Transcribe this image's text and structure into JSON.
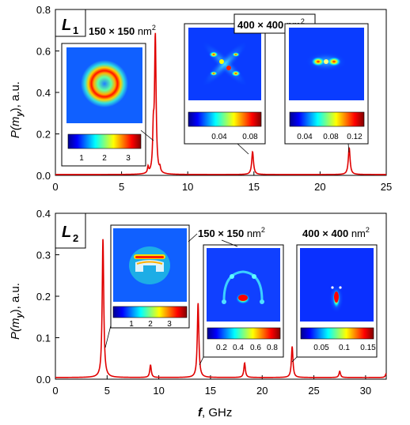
{
  "chart_data": [
    {
      "type": "line",
      "panel_label": "L",
      "panel_label_sub": "1",
      "xlabel": "",
      "ylabel_main": "P(m",
      "ylabel_sub": "y",
      "ylabel_tail": "), a.u.",
      "xlim": [
        0,
        25
      ],
      "ylim": [
        0,
        0.8
      ],
      "xticks": [
        "0",
        "5",
        "10",
        "15",
        "20",
        "25"
      ],
      "yticks": [
        "0.0",
        "0.2",
        "0.4",
        "0.6",
        "0.8"
      ],
      "series": [
        {
          "color": "#e00000",
          "peaks": [
            {
              "x": 7.0,
              "y": 0.03,
              "w": 0.05
            },
            {
              "x": 7.4,
              "y": 0.18,
              "w": 0.06
            },
            {
              "x": 7.55,
              "y": 0.66,
              "w": 0.07
            },
            {
              "x": 7.9,
              "y": 0.02,
              "w": 0.05
            },
            {
              "x": 14.9,
              "y": 0.11,
              "w": 0.08
            },
            {
              "x": 22.2,
              "y": 0.13,
              "w": 0.08
            }
          ]
        }
      ],
      "insets": [
        {
          "size_label": "150 × 150",
          "unit": "nm",
          "exp": "2",
          "ticks": [
            "1",
            "2",
            "3"
          ],
          "pattern": "ring"
        },
        {
          "size_label": "400 × 400",
          "unit": "nm",
          "exp": "2",
          "ticks": [
            "0.04",
            "0.08"
          ],
          "pattern": "quad"
        },
        {
          "ticks": [
            "0.04",
            "0.08",
            "0.12"
          ],
          "pattern": "dumbbell"
        }
      ]
    },
    {
      "type": "line",
      "panel_label": "L",
      "panel_label_sub": "2",
      "xlabel_main": "f",
      "xlabel_tail": ", GHz",
      "ylabel_main": "P(m",
      "ylabel_sub": "y",
      "ylabel_tail": "), a.u.",
      "xlim": [
        0,
        32
      ],
      "ylim": [
        0,
        0.4
      ],
      "xticks": [
        "0",
        "5",
        "10",
        "15",
        "20",
        "25",
        "30"
      ],
      "yticks": [
        "0.0",
        "0.1",
        "0.2",
        "0.3",
        "0.4"
      ],
      "series": [
        {
          "color": "#e00000",
          "peaks": [
            {
              "x": 4.6,
              "y": 0.335,
              "w": 0.09
            },
            {
              "x": 9.2,
              "y": 0.03,
              "w": 0.09
            },
            {
              "x": 13.8,
              "y": 0.18,
              "w": 0.09
            },
            {
              "x": 18.3,
              "y": 0.035,
              "w": 0.09
            },
            {
              "x": 22.9,
              "y": 0.075,
              "w": 0.09
            },
            {
              "x": 27.5,
              "y": 0.015,
              "w": 0.09
            },
            {
              "x": 32.0,
              "y": 0.01,
              "w": 0.09
            }
          ]
        }
      ],
      "insets": [
        {
          "size_label": "150 × 150",
          "unit": "nm",
          "exp": "2",
          "ticks": [
            "1",
            "2",
            "3"
          ],
          "pattern": "arch"
        },
        {
          "ticks": [
            "0.2",
            "0.4",
            "0.6",
            "0.8"
          ],
          "pattern": "arch2"
        },
        {
          "size_label": "400 × 400",
          "unit": "nm",
          "exp": "2",
          "ticks": [
            "0.05",
            "0.1",
            "0.15"
          ],
          "pattern": "spot"
        }
      ]
    }
  ]
}
